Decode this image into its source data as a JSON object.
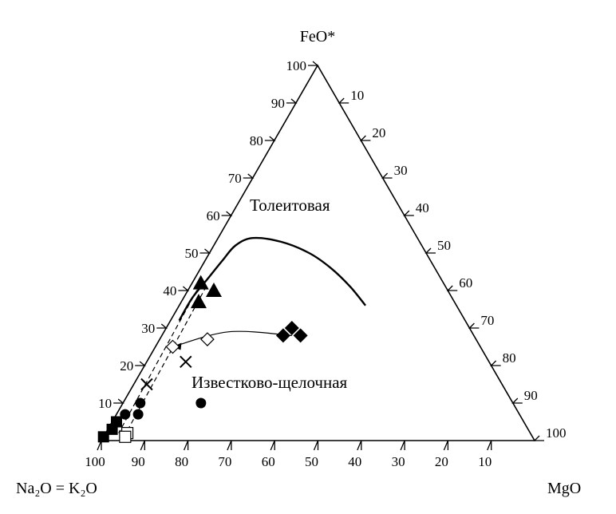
{
  "corners": {
    "top": "FeO*",
    "left": "Na₂O = K₂O",
    "right": "MgO"
  },
  "fields": {
    "tholeiitic": "Толеитовая",
    "calc_alkaline": "Известково-щелочная"
  },
  "ticks": {
    "left_axis": [
      "10",
      "20",
      "30",
      "40",
      "50",
      "60",
      "70",
      "80",
      "90",
      "100"
    ],
    "right_axis": [
      "10",
      "20",
      "30",
      "40",
      "50",
      "60",
      "70",
      "80",
      "90",
      "100"
    ],
    "bottom_axis": [
      "100",
      "90",
      "80",
      "70",
      "60",
      "50",
      "40",
      "30",
      "20",
      "10"
    ]
  },
  "chart_data": {
    "type": "ternary",
    "axes": [
      "FeO*",
      "Na₂O = K₂O",
      "MgO"
    ],
    "range": [
      0,
      100
    ],
    "series": [
      {
        "marker": "filled-triangle",
        "points": [
          [
            42,
            56,
            2
          ],
          [
            40,
            54,
            6
          ],
          [
            37,
            59,
            4
          ]
        ]
      },
      {
        "marker": "filled-diamond",
        "points": [
          [
            28,
            44,
            28
          ],
          [
            30,
            41,
            29
          ],
          [
            28,
            40,
            32
          ]
        ]
      },
      {
        "marker": "open-diamond",
        "points": [
          [
            25,
            71,
            4
          ],
          [
            27,
            62,
            11
          ]
        ]
      },
      {
        "marker": "cross",
        "points": [
          [
            21,
            70,
            9
          ],
          [
            15,
            82,
            3
          ]
        ]
      },
      {
        "marker": "filled-circle",
        "points": [
          [
            10,
            86,
            4
          ],
          [
            7,
            91,
            2
          ],
          [
            10,
            72,
            18
          ],
          [
            7,
            88,
            5
          ]
        ]
      },
      {
        "marker": "filled-square",
        "points": [
          [
            5,
            94,
            1
          ],
          [
            3,
            96,
            1
          ],
          [
            1,
            99,
            0
          ]
        ]
      },
      {
        "marker": "open-square",
        "points": [
          [
            2,
            93,
            5
          ],
          [
            1,
            94,
            5
          ]
        ]
      }
    ],
    "boundary": [
      [
        32,
        66,
        2
      ],
      [
        38,
        60,
        2
      ],
      [
        43,
        54,
        3
      ],
      [
        48,
        48,
        4
      ],
      [
        52,
        43,
        5
      ],
      [
        54,
        38,
        8
      ],
      [
        53,
        32,
        15
      ],
      [
        50,
        27,
        23
      ],
      [
        46,
        24,
        30
      ],
      [
        41,
        22,
        37
      ],
      [
        36,
        21,
        43
      ]
    ],
    "trend_line": [
      [
        28,
        42,
        30
      ],
      [
        29,
        56,
        15
      ],
      [
        25,
        71,
        4
      ]
    ],
    "mixing_line": [
      [
        42,
        56,
        2
      ],
      [
        2,
        95,
        3
      ]
    ]
  }
}
